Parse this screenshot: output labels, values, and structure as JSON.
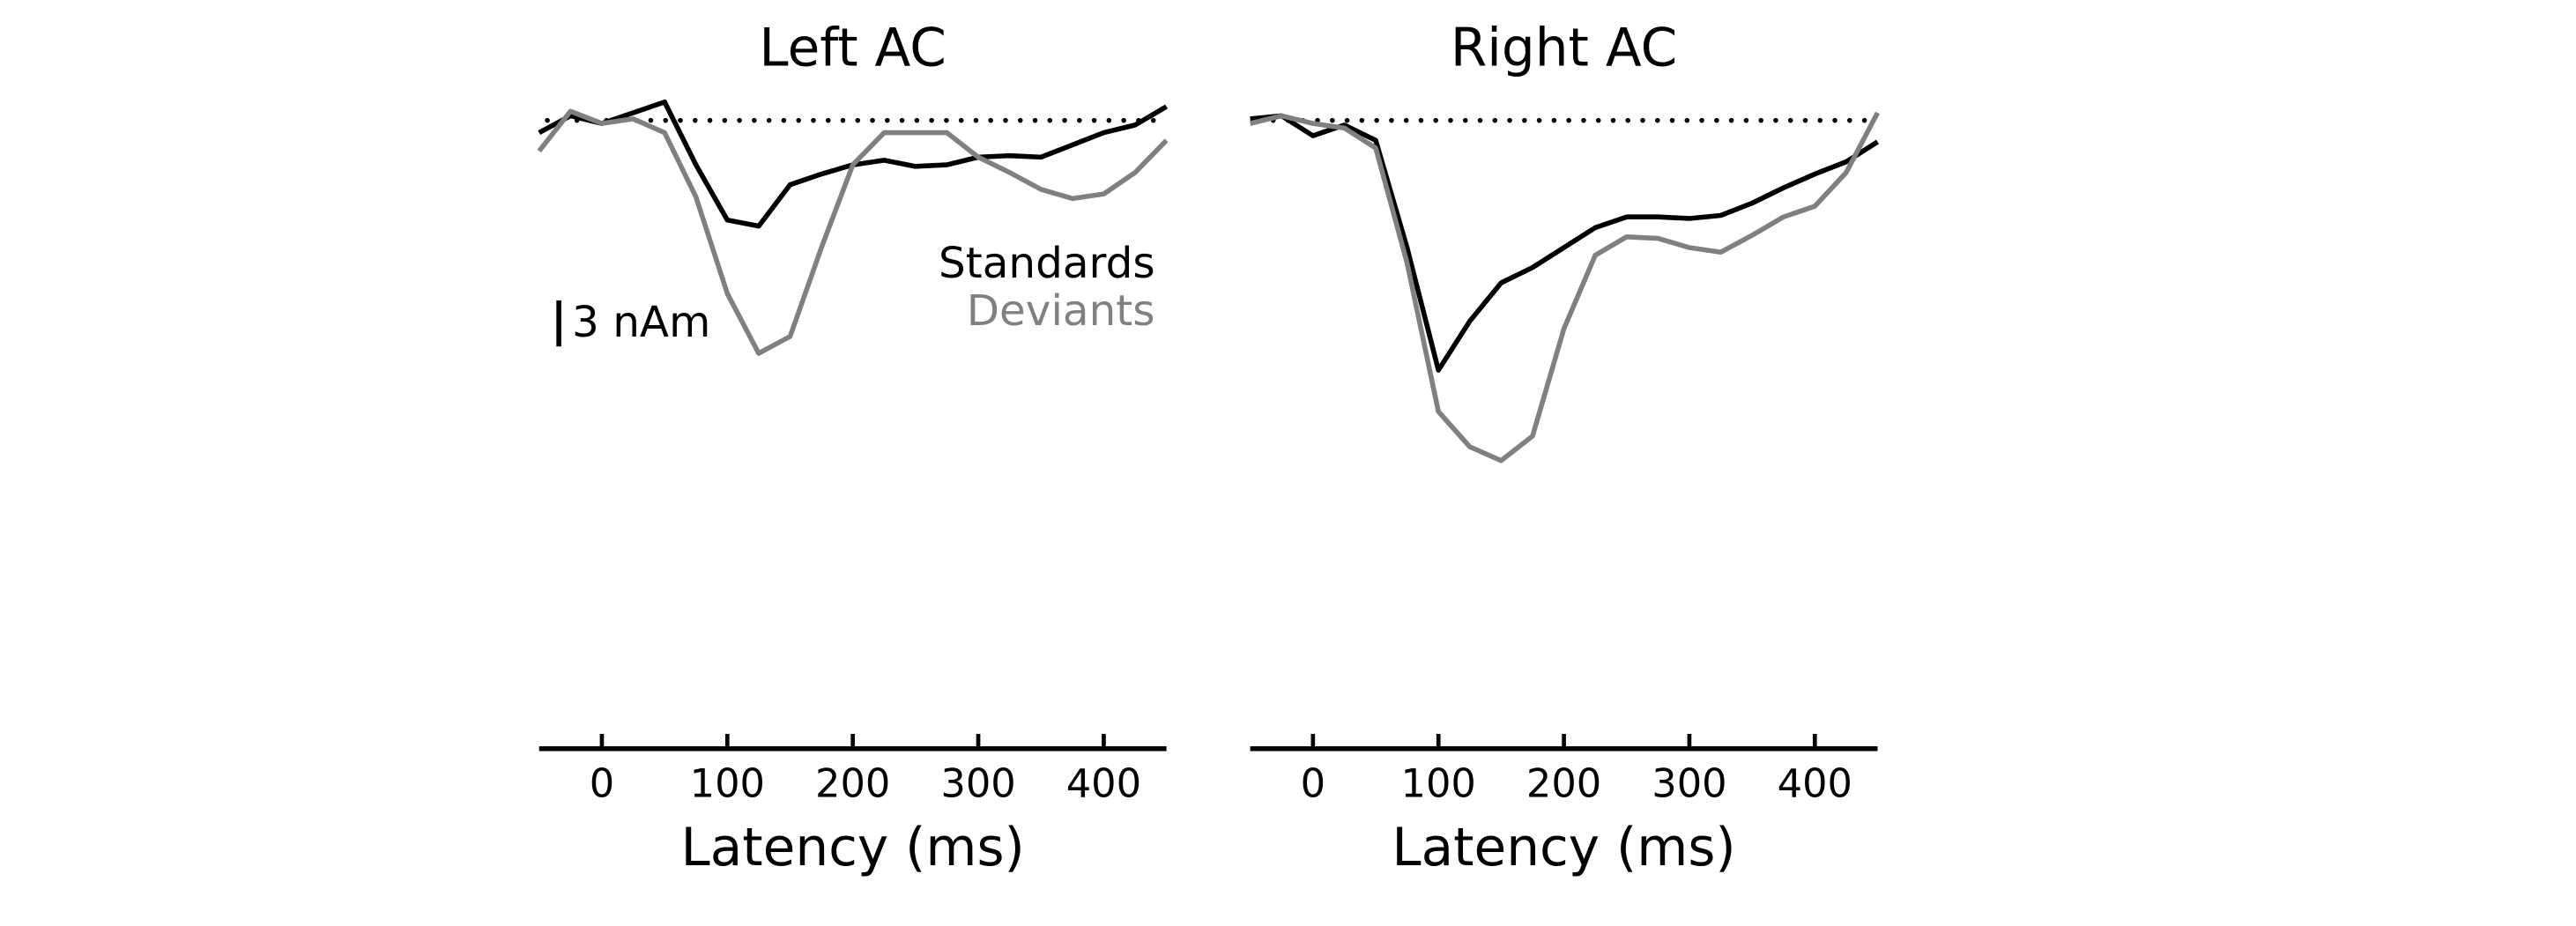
{
  "chart_data": [
    {
      "type": "line",
      "title": "Left AC",
      "xlabel": "Latency (ms)",
      "x": [
        -50,
        -25,
        0,
        25,
        50,
        75,
        100,
        125,
        150,
        175,
        200,
        225,
        250,
        275,
        300,
        325,
        350,
        375,
        400,
        425,
        450
      ],
      "series": [
        {
          "name": "Standards",
          "color": "#000000",
          "values": [
            -0.8,
            0.3,
            -0.2,
            0.5,
            1.2,
            -2.9,
            -6.5,
            -6.9,
            -4.2,
            -3.5,
            -2.9,
            -2.6,
            -3.0,
            -2.9,
            -2.4,
            -2.3,
            -2.4,
            -1.6,
            -0.8,
            -0.3,
            0.9
          ]
        },
        {
          "name": "Deviants",
          "color": "#808080",
          "values": [
            -2.0,
            0.6,
            -0.2,
            0.1,
            -0.8,
            -5.0,
            -11.3,
            -15.2,
            -14.1,
            -8.3,
            -2.9,
            -0.8,
            -0.8,
            -0.8,
            -2.4,
            -3.4,
            -4.5,
            -5.1,
            -4.8,
            -3.4,
            -1.3
          ]
        }
      ],
      "xlim": [
        -50,
        450
      ],
      "xticks": [
        0,
        100,
        200,
        300,
        400
      ],
      "ylim": [
        -41,
        2.5
      ],
      "hline": 0,
      "legend": "right",
      "scalebar": {
        "value": 3,
        "label": "3 nAm"
      }
    },
    {
      "type": "line",
      "title": "Right AC",
      "xlabel": "Latency (ms)",
      "x": [
        -50,
        -25,
        0,
        25,
        50,
        75,
        100,
        125,
        150,
        175,
        200,
        225,
        250,
        275,
        300,
        325,
        350,
        375,
        400,
        425,
        450
      ],
      "series": [
        {
          "color": "#000000",
          "values": [
            0.1,
            0.3,
            -1.0,
            -0.3,
            -1.3,
            -8.3,
            -16.3,
            -13.1,
            -10.6,
            -9.6,
            -8.3,
            -7.0,
            -6.3,
            -6.3,
            -6.4,
            -6.2,
            -5.4,
            -4.4,
            -3.5,
            -2.7,
            -1.4
          ]
        },
        {
          "color": "#808080",
          "values": [
            -0.2,
            0.3,
            -0.2,
            -0.5,
            -1.8,
            -9.3,
            -19.0,
            -21.3,
            -22.2,
            -20.6,
            -13.6,
            -8.8,
            -7.6,
            -7.7,
            -8.3,
            -8.6,
            -7.5,
            -6.3,
            -5.6,
            -3.4,
            0.5
          ]
        }
      ],
      "xlim": [
        -50,
        450
      ],
      "xticks": [
        0,
        100,
        200,
        300,
        400
      ],
      "ylim": [
        -41,
        2.5
      ],
      "hline": 0
    }
  ]
}
